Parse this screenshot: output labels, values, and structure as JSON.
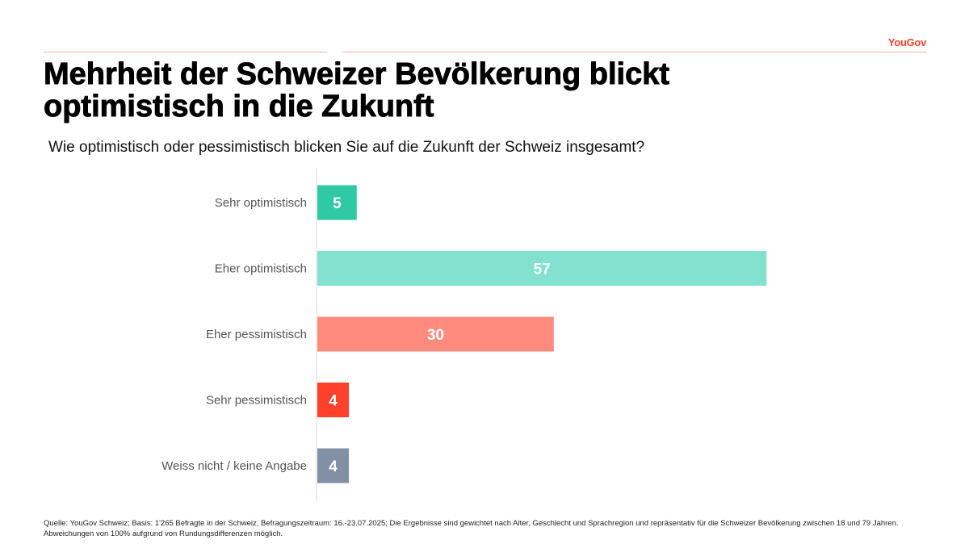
{
  "header": {
    "brand": "YouGov",
    "title_lines": [
      "Mehrheit der Schweizer Bevölkerung blickt",
      "optimistisch in die Zukunft"
    ],
    "question": "Wie optimistisch oder pessimistisch blicken Sie auf die Zukunft der Schweiz insgesamt?"
  },
  "chart_data": {
    "type": "bar",
    "orientation": "horizontal",
    "categories": [
      "Sehr optimistisch",
      "Eher optimistisch",
      "Eher pessimistisch",
      "Sehr pessimistisch",
      "Weiss nicht / keine Angabe"
    ],
    "values": [
      5,
      57,
      30,
      4,
      4
    ],
    "colors": [
      "#30c9a5",
      "#82e2cf",
      "#ff8a7e",
      "#ff412c",
      "#8290a6"
    ],
    "value_label_color": "#ffffff",
    "xlim": [
      0,
      60
    ],
    "grid": false,
    "legend": false
  },
  "footnote": {
    "text": "Quelle: YouGov Schweiz; Basis: 1'265 Befragte in der Schweiz, Befragungszeitraum: 16.-23.07.2025; Die Ergebnisse sind gewichtet nach Alter, Geschlecht und Sprachregion und repräsentativ für die Schweizer Bevölkerung zwischen 18 und 79 Jahren. Abweichungen von 100% aufgrund von Rundungsdifferenzen möglich."
  }
}
